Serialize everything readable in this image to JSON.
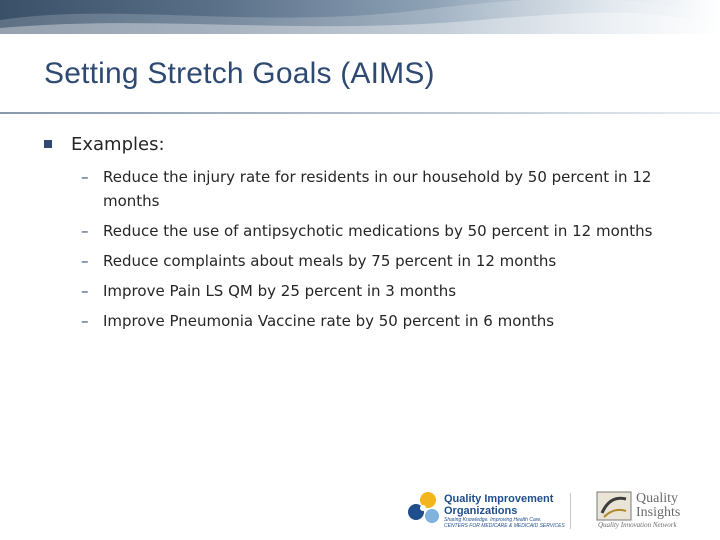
{
  "slide": {
    "title": "Setting Stretch Goals (AIMS)",
    "bullet": "Examples:",
    "items": [
      "Reduce the injury rate for residents in our household by 50 percent in 12 months",
      "Reduce the use of antipsychotic medications by 50 percent in 12 months",
      "Reduce complaints about meals by 75 percent in 12 months",
      "Improve Pain LS QM by 25 percent in 3 months",
      "Improve Pneumonia Vaccine rate by 50 percent in 6 months"
    ]
  },
  "logos": {
    "qio_line1": "Quality Improvement",
    "qio_line2": "Organizations",
    "qio_tagline": "Sharing Knowledge. Improving Health Care.",
    "qio_sub": "CENTERS FOR MEDICARE & MEDICAID SERVICES",
    "qi_line1": "Quality",
    "qi_line2": "Insights",
    "qi_tagline": "Quality Innovation Network"
  },
  "colors": {
    "title": "#2e4a73",
    "body_text": "#262626",
    "bullet": "#2e4a73",
    "header_band": "#3a5068"
  }
}
